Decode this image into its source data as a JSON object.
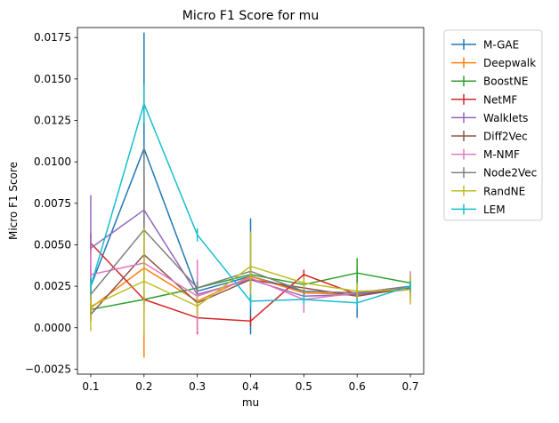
{
  "chart_data": {
    "type": "line",
    "title": "Micro F1 Score for mu",
    "xlabel": "mu",
    "ylabel": "Micro F1 Score",
    "x": [
      0.1,
      0.2,
      0.3,
      0.4,
      0.5,
      0.6,
      0.7
    ],
    "xticks": [
      "0.1",
      "0.2",
      "0.3",
      "0.4",
      "0.5",
      "0.6",
      "0.7"
    ],
    "yticks": [
      -0.0025,
      0.0,
      0.0025,
      0.005,
      0.0075,
      0.01,
      0.0125,
      0.015,
      0.0175
    ],
    "ytick_labels": [
      "−0.0025",
      "0.0000",
      "0.0025",
      "0.0050",
      "0.0075",
      "0.0100",
      "0.0125",
      "0.0150",
      "0.0175"
    ],
    "xlim": [
      0.075,
      0.725
    ],
    "ylim": [
      -0.0028,
      0.0181
    ],
    "grid": false,
    "legend_position": "outside-right",
    "series": [
      {
        "name": "M-GAE",
        "color": "#1f77b4",
        "values": [
          0.0025,
          0.0108,
          0.0022,
          0.0031,
          0.0022,
          0.0021,
          0.0025
        ],
        "err": [
          0.001,
          0.007,
          0.0005,
          0.0035,
          0.0004,
          0.0015,
          0.0004
        ]
      },
      {
        "name": "Deepwalk",
        "color": "#ff7f0e",
        "values": [
          0.0012,
          0.0036,
          0.0016,
          0.0031,
          0.0021,
          0.002,
          0.0023
        ],
        "err": [
          0.0006,
          0.0054,
          0.0004,
          0.0004,
          0.0003,
          0.0003,
          0.0004
        ]
      },
      {
        "name": "BoostNE",
        "color": "#2ca02c",
        "values": [
          0.0011,
          0.0017,
          0.0024,
          0.0032,
          0.0026,
          0.0033,
          0.0027
        ],
        "err": [
          0.0003,
          0.0003,
          0.0003,
          0.0004,
          0.0003,
          0.0009,
          0.0003
        ]
      },
      {
        "name": "NetMF",
        "color": "#d62728",
        "values": [
          0.0051,
          0.0017,
          0.0006,
          0.0004,
          0.0032,
          0.002,
          0.0024
        ],
        "err": [
          0.0006,
          0.0003,
          0.001,
          0.0003,
          0.0003,
          0.0003,
          0.0003
        ]
      },
      {
        "name": "Walklets",
        "color": "#9467bd",
        "values": [
          0.0048,
          0.0071,
          0.002,
          0.0029,
          0.0019,
          0.002,
          0.0025
        ],
        "err": [
          0.0032,
          0.002,
          0.0003,
          0.0003,
          0.0003,
          0.0003,
          0.0003
        ]
      },
      {
        "name": "Diff2Vec",
        "color": "#8c564b",
        "values": [
          0.0008,
          0.0044,
          0.0015,
          0.0029,
          0.0024,
          0.0019,
          0.0024
        ],
        "err": [
          0.0004,
          0.0005,
          0.0003,
          0.0004,
          0.0003,
          0.0003,
          0.0003
        ]
      },
      {
        "name": "M-NMF",
        "color": "#e377c2",
        "values": [
          0.0032,
          0.0039,
          0.0019,
          0.003,
          0.0017,
          0.0021,
          0.0025
        ],
        "err": [
          0.0015,
          0.0006,
          0.0022,
          0.0006,
          0.0008,
          0.0003,
          0.0009
        ]
      },
      {
        "name": "Node2Vec",
        "color": "#7f7f7f",
        "values": [
          0.002,
          0.0059,
          0.0024,
          0.0034,
          0.0022,
          0.0021,
          0.0025
        ],
        "err": [
          0.001,
          0.005,
          0.0004,
          0.0004,
          0.0003,
          0.0003,
          0.0003
        ]
      },
      {
        "name": "RandNE",
        "color": "#bcbd22",
        "values": [
          0.0013,
          0.0028,
          0.0013,
          0.0037,
          0.0027,
          0.0022,
          0.0023
        ],
        "err": [
          0.0015,
          0.0032,
          0.0006,
          0.0021,
          0.0004,
          0.0005,
          0.0009
        ]
      },
      {
        "name": "LEM",
        "color": "#17becf",
        "values": [
          0.0025,
          0.0135,
          0.0056,
          0.0016,
          0.0017,
          0.0015,
          0.0025
        ],
        "err": [
          0.0005,
          0.0012,
          0.0004,
          0.0004,
          0.0003,
          0.0003,
          0.0003
        ]
      }
    ]
  }
}
